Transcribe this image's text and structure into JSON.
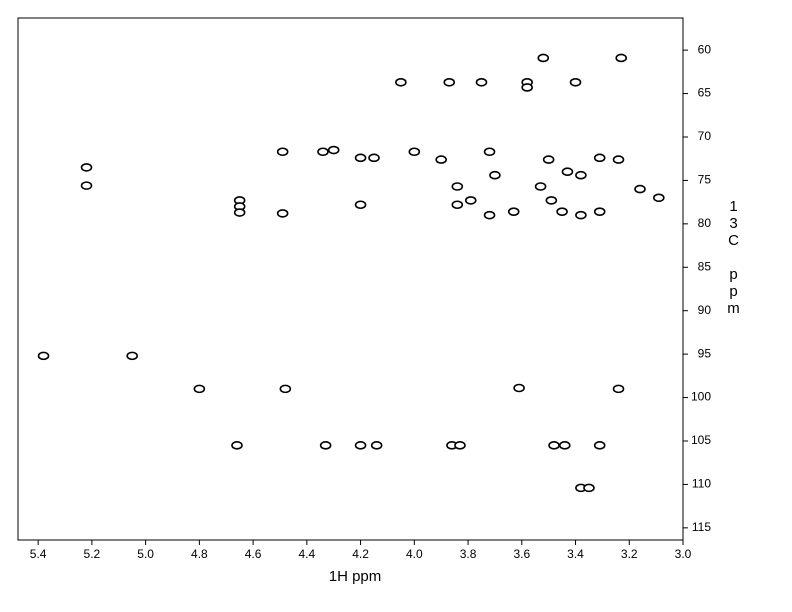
{
  "chart_data": {
    "type": "scatter",
    "x_label": "1H ppm",
    "y_label": "13C ppm",
    "xlim": [
      5.475,
      3.0
    ],
    "ylim": [
      56.3,
      116.4
    ],
    "xticks": [
      5.4,
      5.2,
      {
        "value": 5.0,
        "label": "5.0"
      },
      4.8,
      4.6,
      4.4,
      4.2,
      {
        "value": 4.0,
        "label": "4.0"
      },
      3.8,
      3.6,
      3.4,
      3.2,
      {
        "value": 3.0,
        "label": "3.0"
      }
    ],
    "yticks": [
      60,
      65,
      70,
      75,
      80,
      85,
      90,
      95,
      100,
      105,
      110,
      115
    ],
    "color": "#000000",
    "series": [
      {
        "name": "peaks",
        "x": [
          5.38,
          5.05,
          5.22,
          5.22,
          4.8,
          4.48,
          4.66,
          4.33,
          4.2,
          4.14,
          3.86,
          3.83,
          3.48,
          3.44,
          3.31,
          4.65,
          4.65,
          4.65,
          4.49,
          4.49,
          4.05,
          3.87,
          3.75,
          3.58,
          3.4,
          3.52,
          3.23,
          4.2,
          4.2,
          4.34,
          4.3,
          4.15,
          4.0,
          3.9,
          3.84,
          3.84,
          3.79,
          3.72,
          3.7,
          3.72,
          3.63,
          3.53,
          3.5,
          3.49,
          3.45,
          3.38,
          3.38,
          3.31,
          3.24,
          3.16,
          3.09,
          3.31,
          3.24,
          3.61,
          3.38,
          3.35,
          3.58,
          3.43
        ],
        "y": [
          95.2,
          95.2,
          73.5,
          75.6,
          99.0,
          99.0,
          105.5,
          105.5,
          105.5,
          105.5,
          105.5,
          105.5,
          105.5,
          105.5,
          105.5,
          77.3,
          78.0,
          78.7,
          71.7,
          78.8,
          63.7,
          63.7,
          63.7,
          63.7,
          63.7,
          60.9,
          60.9,
          72.4,
          77.8,
          71.7,
          71.5,
          72.4,
          71.7,
          72.6,
          75.7,
          77.8,
          77.3,
          71.7,
          74.4,
          79.0,
          78.6,
          75.7,
          72.6,
          77.3,
          78.6,
          74.4,
          79.0,
          72.4,
          72.6,
          76.0,
          77.0,
          78.6,
          99.0,
          98.9,
          110.4,
          110.4,
          64.3,
          74.0
        ]
      }
    ]
  }
}
